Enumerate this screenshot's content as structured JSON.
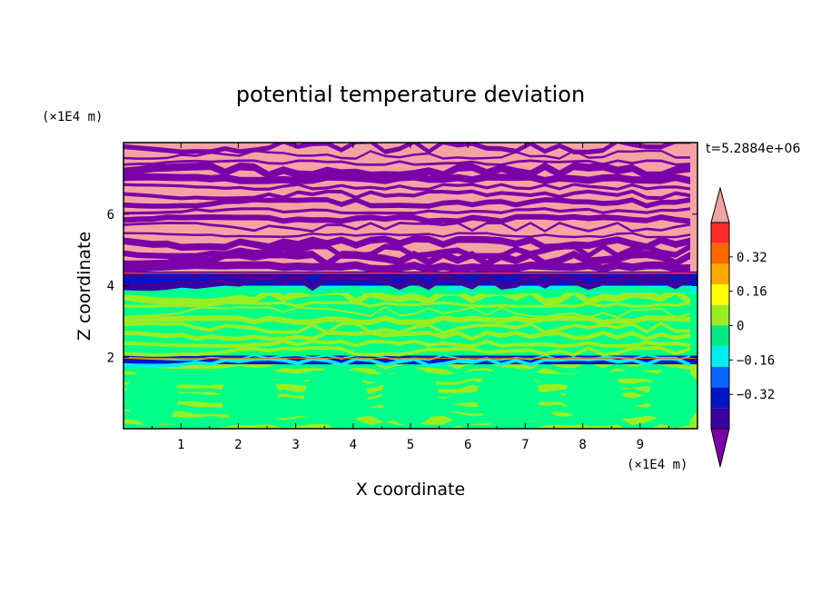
{
  "chart_data": {
    "type": "heatmap",
    "title": "potential temperature deviation",
    "xlabel": "X coordinate",
    "ylabel": "Z coordinate",
    "x_unit": "(×1E4 m)",
    "y_unit": "(×1E4 m)",
    "time_label": "t=5.2884e+06",
    "xlim": [
      0,
      10
    ],
    "ylim": [
      0,
      8
    ],
    "x_ticks": [
      "1",
      "2",
      "3",
      "4",
      "5",
      "6",
      "7",
      "8",
      "9"
    ],
    "y_ticks": [
      "2",
      "4",
      "6"
    ],
    "colorbar": {
      "tick_labels": [
        "0.32",
        "0.16",
        "0",
        "−0.16",
        "−0.32"
      ],
      "tick_values": [
        0.32,
        0.16,
        0,
        -0.16,
        -0.32
      ],
      "colors": [
        "#7b00a8",
        "#3a00a0",
        "#0014c8",
        "#0a64ff",
        "#00eeee",
        "#00e888",
        "#99ee22",
        "#ffff00",
        "#ffaa00",
        "#ff6600",
        "#ff2a2a",
        "#f4a3a3"
      ],
      "extend": "both"
    },
    "layers": [
      {
        "band": [
          0.0,
          1.8
        ],
        "dominant": "#99ee22",
        "secondary": "#00ff88"
      },
      {
        "band": [
          1.8,
          2.05
        ],
        "dominant": "#0014c8",
        "secondary": "#00eeee"
      },
      {
        "band": [
          2.05,
          3.8
        ],
        "dominant": "#00ff88",
        "secondary": "#99ee22"
      },
      {
        "band": [
          3.8,
          4.0
        ],
        "dominant": "#00eeee",
        "secondary": "#00ff88"
      },
      {
        "band": [
          4.0,
          4.4
        ],
        "dominant": "#0014c8",
        "secondary": "#3a00a0"
      },
      {
        "band": [
          4.4,
          8.0
        ],
        "dominant": "#f4a3a3",
        "secondary": "#7b00a8"
      }
    ]
  }
}
